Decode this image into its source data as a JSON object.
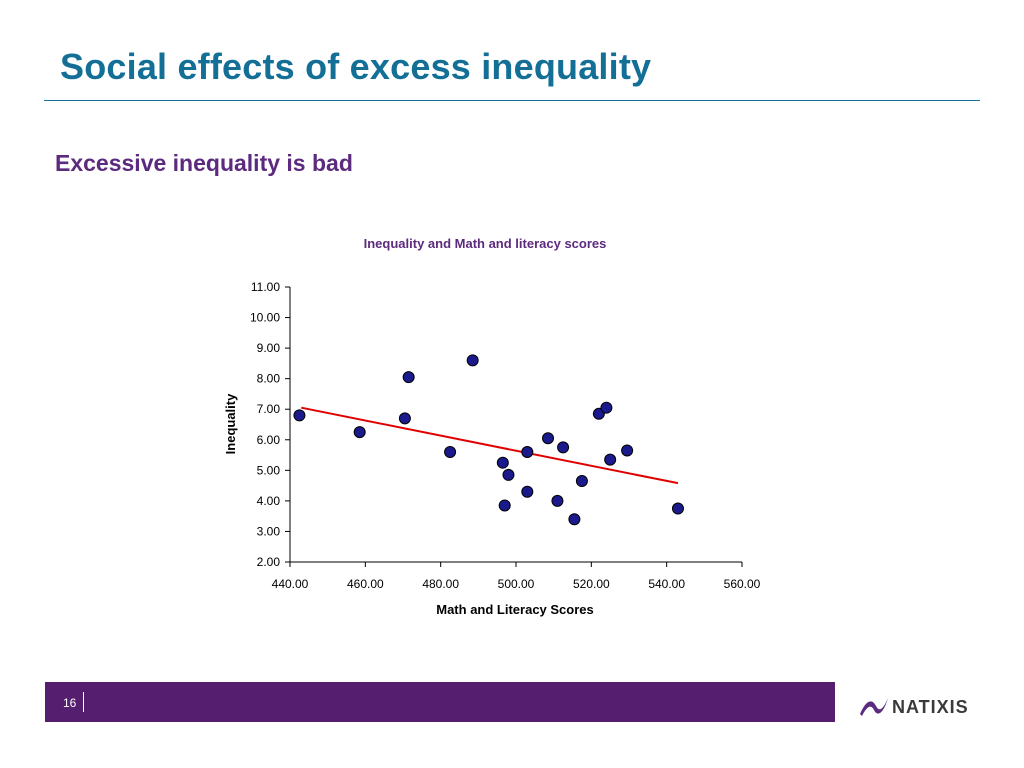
{
  "slide": {
    "title": "Social effects of excess inequality",
    "subtitle": "Excessive inequality is bad",
    "page_number": "16",
    "logo_text": "NATIXIS"
  },
  "colors": {
    "title": "#136f96",
    "subtitle": "#5c2a7e",
    "footer": "#561e6e",
    "marker_fill": "#1a1a8c",
    "trend_line": "#e00000"
  },
  "chart_data": {
    "type": "scatter",
    "title": "Inequality and Math and literacy scores",
    "xlabel": "Math and Literacy Scores",
    "ylabel": "Inequality",
    "xlim": [
      440,
      560
    ],
    "ylim": [
      2,
      11
    ],
    "x_ticks": [
      "440.00",
      "460.00",
      "480.00",
      "500.00",
      "520.00",
      "540.00",
      "560.00"
    ],
    "y_ticks": [
      "2.00",
      "3.00",
      "4.00",
      "5.00",
      "6.00",
      "7.00",
      "8.00",
      "9.00",
      "10.00",
      "11.00"
    ],
    "grid": false,
    "points": [
      {
        "x": 442.5,
        "y": 6.8
      },
      {
        "x": 458.5,
        "y": 6.25
      },
      {
        "x": 470.5,
        "y": 6.7
      },
      {
        "x": 471.5,
        "y": 8.05
      },
      {
        "x": 482.5,
        "y": 5.6
      },
      {
        "x": 488.5,
        "y": 8.6
      },
      {
        "x": 496.5,
        "y": 5.25
      },
      {
        "x": 497.0,
        "y": 3.85
      },
      {
        "x": 498.0,
        "y": 4.85
      },
      {
        "x": 503.0,
        "y": 4.3
      },
      {
        "x": 503.0,
        "y": 5.6
      },
      {
        "x": 508.5,
        "y": 6.05
      },
      {
        "x": 511.0,
        "y": 4.0
      },
      {
        "x": 512.5,
        "y": 5.75
      },
      {
        "x": 515.5,
        "y": 3.4
      },
      {
        "x": 517.5,
        "y": 4.65
      },
      {
        "x": 522.0,
        "y": 6.85
      },
      {
        "x": 524.0,
        "y": 7.05
      },
      {
        "x": 525.0,
        "y": 5.35
      },
      {
        "x": 529.5,
        "y": 5.65
      },
      {
        "x": 543.0,
        "y": 3.75
      }
    ],
    "trendline": {
      "x": [
        443,
        543
      ],
      "y": [
        7.05,
        4.58
      ]
    }
  }
}
